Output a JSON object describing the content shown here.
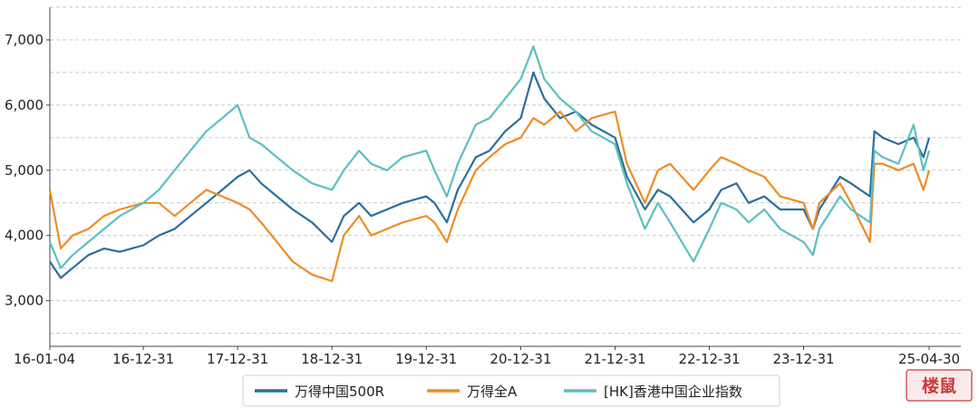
{
  "chart_data": {
    "type": "line",
    "title": "",
    "xlabel": "",
    "ylabel": "",
    "ylim": [
      2300,
      7500
    ],
    "y_ticks": [
      "3,000",
      "4,000",
      "5,000",
      "6,000",
      "7,000"
    ],
    "y_tick_values": [
      3000,
      4000,
      5000,
      6000,
      7000
    ],
    "x_ticks": [
      "16-01-04",
      "16-12-31",
      "17-12-31",
      "18-12-31",
      "19-12-31",
      "20-12-31",
      "21-12-31",
      "22-12-31",
      "23-12-31",
      "25-04-30"
    ],
    "x_tick_values": [
      "2016-01-04",
      "2016-12-31",
      "2017-12-31",
      "2018-12-31",
      "2019-12-31",
      "2020-12-31",
      "2021-12-31",
      "2022-12-31",
      "2023-12-31",
      "2025-04-30"
    ],
    "grid": "horizontal-dashed",
    "legend_position": "bottom",
    "x": [
      "2016-01-04",
      "2016-02-15",
      "2016-04-01",
      "2016-06-01",
      "2016-08-01",
      "2016-10-01",
      "2016-12-31",
      "2017-03-01",
      "2017-05-01",
      "2017-07-01",
      "2017-09-01",
      "2017-11-01",
      "2017-12-31",
      "2018-02-15",
      "2018-04-01",
      "2018-06-01",
      "2018-08-01",
      "2018-10-15",
      "2018-12-31",
      "2019-02-15",
      "2019-04-15",
      "2019-06-01",
      "2019-08-01",
      "2019-10-01",
      "2019-12-31",
      "2020-02-01",
      "2020-03-20",
      "2020-05-01",
      "2020-07-10",
      "2020-09-01",
      "2020-11-01",
      "2020-12-31",
      "2021-02-18",
      "2021-04-01",
      "2021-06-01",
      "2021-08-01",
      "2021-10-01",
      "2021-12-31",
      "2022-02-15",
      "2022-04-26",
      "2022-06-15",
      "2022-08-01",
      "2022-10-31",
      "2022-12-31",
      "2023-02-15",
      "2023-04-15",
      "2023-06-01",
      "2023-08-01",
      "2023-10-01",
      "2023-12-31",
      "2024-02-05",
      "2024-03-01",
      "2024-05-20",
      "2024-07-01",
      "2024-09-13",
      "2024-09-30",
      "2024-11-01",
      "2025-01-01",
      "2025-03-01",
      "2025-04-08",
      "2025-04-30"
    ],
    "series": [
      {
        "name": "万得中国500R",
        "color": "#2b6f9a",
        "values": [
          3600,
          3350,
          3500,
          3700,
          3800,
          3750,
          3850,
          4000,
          4100,
          4300,
          4500,
          4700,
          4900,
          5000,
          4800,
          4600,
          4400,
          4200,
          3900,
          4300,
          4500,
          4300,
          4400,
          4500,
          4600,
          4500,
          4200,
          4700,
          5200,
          5300,
          5600,
          5800,
          6500,
          6100,
          5800,
          5900,
          5700,
          5500,
          4900,
          4400,
          4700,
          4600,
          4200,
          4400,
          4700,
          4800,
          4500,
          4600,
          4400,
          4400,
          4100,
          4400,
          4900,
          4800,
          4600,
          5600,
          5500,
          5400,
          5500,
          5200,
          5500
        ]
      },
      {
        "name": "万得全A",
        "color": "#ef8c25",
        "values": [
          4700,
          3800,
          4000,
          4100,
          4300,
          4400,
          4500,
          4500,
          4300,
          4500,
          4700,
          4600,
          4500,
          4400,
          4200,
          3900,
          3600,
          3400,
          3300,
          4000,
          4300,
          4000,
          4100,
          4200,
          4300,
          4200,
          3900,
          4400,
          5000,
          5200,
          5400,
          5500,
          5800,
          5700,
          5900,
          5600,
          5800,
          5900,
          5100,
          4500,
          5000,
          5100,
          4700,
          5000,
          5200,
          5100,
          5000,
          4900,
          4600,
          4500,
          4100,
          4500,
          4800,
          4500,
          3900,
          5100,
          5100,
          5000,
          5100,
          4700,
          5000
        ]
      },
      {
        "name": "[HK]香港中国企业指数",
        "color": "#5cbfc2",
        "values": [
          3900,
          3500,
          3700,
          3900,
          4100,
          4300,
          4500,
          4700,
          5000,
          5300,
          5600,
          5800,
          6000,
          5500,
          5400,
          5200,
          5000,
          4800,
          4700,
          5000,
          5300,
          5100,
          5000,
          5200,
          5300,
          5000,
          4600,
          5100,
          5700,
          5800,
          6100,
          6400,
          6900,
          6400,
          6100,
          5900,
          5600,
          5400,
          4800,
          4100,
          4500,
          4200,
          3600,
          4100,
          4500,
          4400,
          4200,
          4400,
          4100,
          3900,
          3700,
          4100,
          4600,
          4400,
          4200,
          5300,
          5200,
          5100,
          5700,
          5000,
          5300
        ]
      }
    ]
  },
  "watermark": {
    "text": "楼鼠",
    "color": "#c93a3a"
  }
}
